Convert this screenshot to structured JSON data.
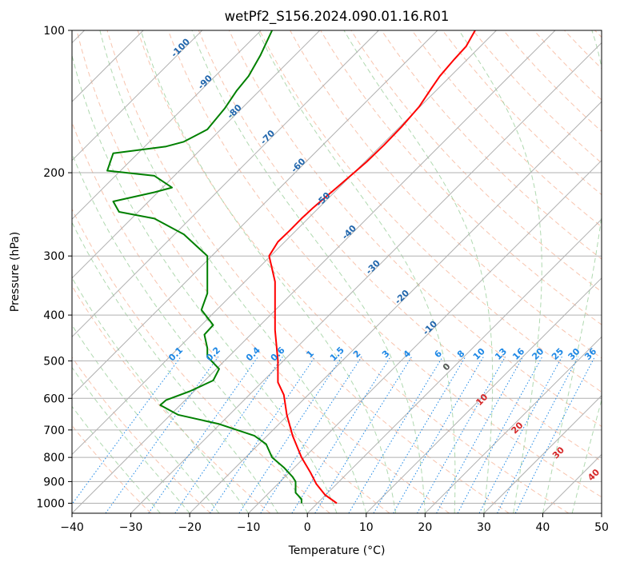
{
  "chart_data": {
    "type": "line",
    "title": "wetPf2_S156.2024.090.01.16.R01",
    "xlabel": "Temperature (°C)",
    "ylabel": "Pressure (hPa)",
    "xlim": [
      -40,
      50
    ],
    "ylim": [
      1050,
      100
    ],
    "y_scale": "log",
    "grid": true,
    "x_ticks": [
      -40,
      -30,
      -20,
      -10,
      0,
      10,
      20,
      30,
      40,
      50
    ],
    "x_tick_labels": [
      "−40",
      "−30",
      "−20",
      "−10",
      "0",
      "10",
      "20",
      "30",
      "40",
      "50"
    ],
    "y_ticks": [
      100,
      200,
      300,
      400,
      500,
      600,
      700,
      800,
      900,
      1000
    ],
    "y_tick_labels": [
      "100",
      "200",
      "300",
      "400",
      "500",
      "600",
      "700",
      "800",
      "900",
      "1000"
    ],
    "series": [
      {
        "color": "#ff0000",
        "points": [
          [
            5,
            1000
          ],
          [
            3,
            960
          ],
          [
            1.5,
            910
          ],
          [
            0.5,
            860
          ],
          [
            -1,
            800
          ],
          [
            -2.5,
            720
          ],
          [
            -3.5,
            650
          ],
          [
            -4,
            590
          ],
          [
            -5,
            555
          ],
          [
            -5,
            500
          ],
          [
            -5.5,
            430
          ],
          [
            -5.5,
            380
          ],
          [
            -5.5,
            340
          ],
          [
            -6.5,
            300
          ],
          [
            -5,
            280
          ],
          [
            -3,
            265
          ],
          [
            -1,
            250
          ],
          [
            1,
            237
          ],
          [
            5,
            215
          ],
          [
            10,
            190
          ],
          [
            13,
            175
          ],
          [
            16,
            160
          ],
          [
            19,
            145
          ],
          [
            21,
            133
          ],
          [
            22.5,
            125
          ],
          [
            25,
            115
          ],
          [
            27,
            108
          ],
          [
            28.5,
            100
          ]
        ]
      },
      {
        "color": "#008000",
        "points": [
          [
            -1,
            1000
          ],
          [
            -1,
            980
          ],
          [
            -2,
            950
          ],
          [
            -2,
            900
          ],
          [
            -2.5,
            880
          ],
          [
            -4,
            840
          ],
          [
            -6,
            800
          ],
          [
            -7,
            750
          ],
          [
            -9,
            720
          ],
          [
            -15,
            680
          ],
          [
            -22,
            650
          ],
          [
            -25,
            620
          ],
          [
            -24,
            605
          ],
          [
            -20,
            580
          ],
          [
            -16,
            550
          ],
          [
            -15,
            520
          ],
          [
            -17,
            490
          ],
          [
            -17,
            470
          ],
          [
            -17.5,
            440
          ],
          [
            -16,
            420
          ],
          [
            -18,
            390
          ],
          [
            -17,
            360
          ],
          [
            -17,
            300
          ],
          [
            -21,
            270
          ],
          [
            -26,
            250
          ],
          [
            -32,
            242
          ],
          [
            -33,
            230
          ],
          [
            -26,
            220
          ],
          [
            -23,
            215
          ],
          [
            -26,
            203
          ],
          [
            -34,
            198
          ],
          [
            -33,
            182
          ],
          [
            -24,
            176
          ],
          [
            -21,
            172
          ],
          [
            -17,
            162
          ],
          [
            -14,
            146
          ],
          [
            -12,
            134
          ],
          [
            -10,
            125
          ],
          [
            -8,
            113
          ],
          [
            -6,
            100
          ]
        ]
      }
    ],
    "dry_adiabats_label_c": [
      -100,
      -90,
      -80,
      -70,
      -60,
      -50,
      -40,
      -30,
      -20,
      -10
    ],
    "dry_adiabat_labels": [
      "-100",
      "-90",
      "-80",
      "-70",
      "-60",
      "-50",
      "-40",
      "-30",
      "-20",
      "-10"
    ],
    "mixing_ratio_labels": [
      "0.1",
      "0.2",
      "0.4",
      "0.6",
      "1",
      "1.5",
      "2",
      "3",
      "4",
      "6",
      "8",
      "10",
      "13",
      "16",
      "20",
      "25",
      "30",
      "36"
    ],
    "moist_adiabat_labels": [
      "0",
      "10",
      "20",
      "30",
      "40"
    ],
    "colors": {
      "temperature": "#ff0000",
      "dewpoint": "#008000",
      "grid": "#b0b0b0",
      "dry_adiabat": "#f4a582",
      "moist_adiabat": "#8fc98f",
      "mixing_ratio": "#1e88e5",
      "dry_label": "#2166ac",
      "moist_label": "#d62728"
    }
  }
}
